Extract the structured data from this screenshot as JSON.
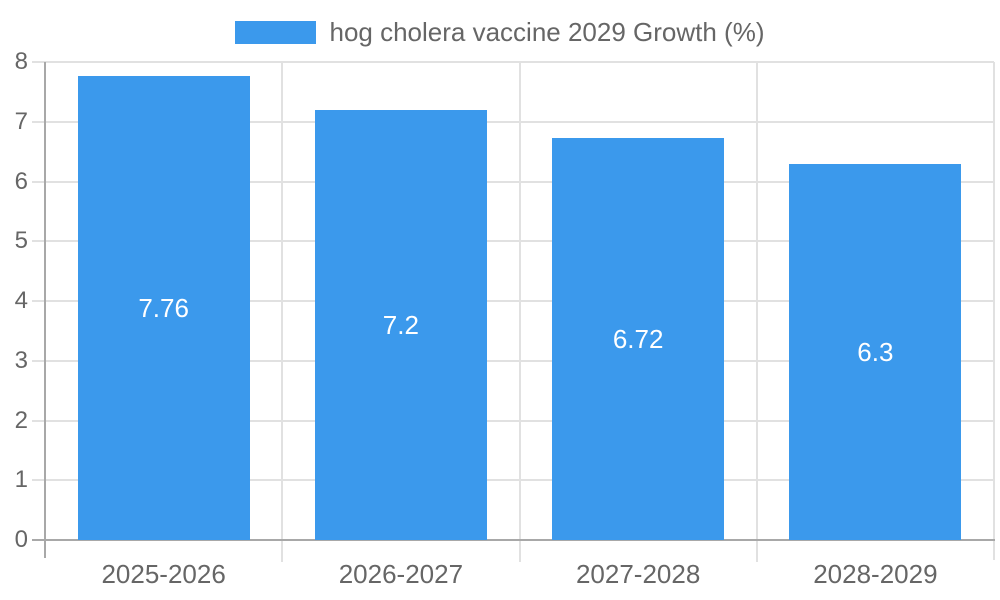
{
  "chart_data": {
    "type": "bar",
    "title": "",
    "legend": "hog cholera vaccine 2029 Growth (%)",
    "legend_position": "top",
    "categories": [
      "2025-2026",
      "2026-2027",
      "2027-2028",
      "2028-2029"
    ],
    "values": [
      7.76,
      7.2,
      6.72,
      6.3
    ],
    "value_labels": [
      "7.76",
      "7.2",
      "6.72",
      "6.3"
    ],
    "xlabel": "",
    "ylabel": "",
    "ylim": [
      0,
      8
    ],
    "ytick_step": 1,
    "yticks": [
      "0",
      "1",
      "2",
      "3",
      "4",
      "5",
      "6",
      "7",
      "8"
    ],
    "grid": true
  },
  "colors": {
    "bar": "#3B99EC",
    "grid": "#E1E1E1",
    "axis": "#A8A8A8",
    "label_text": "#666666",
    "value_text": "#FFFFFF",
    "background": "#FFFFFF"
  }
}
